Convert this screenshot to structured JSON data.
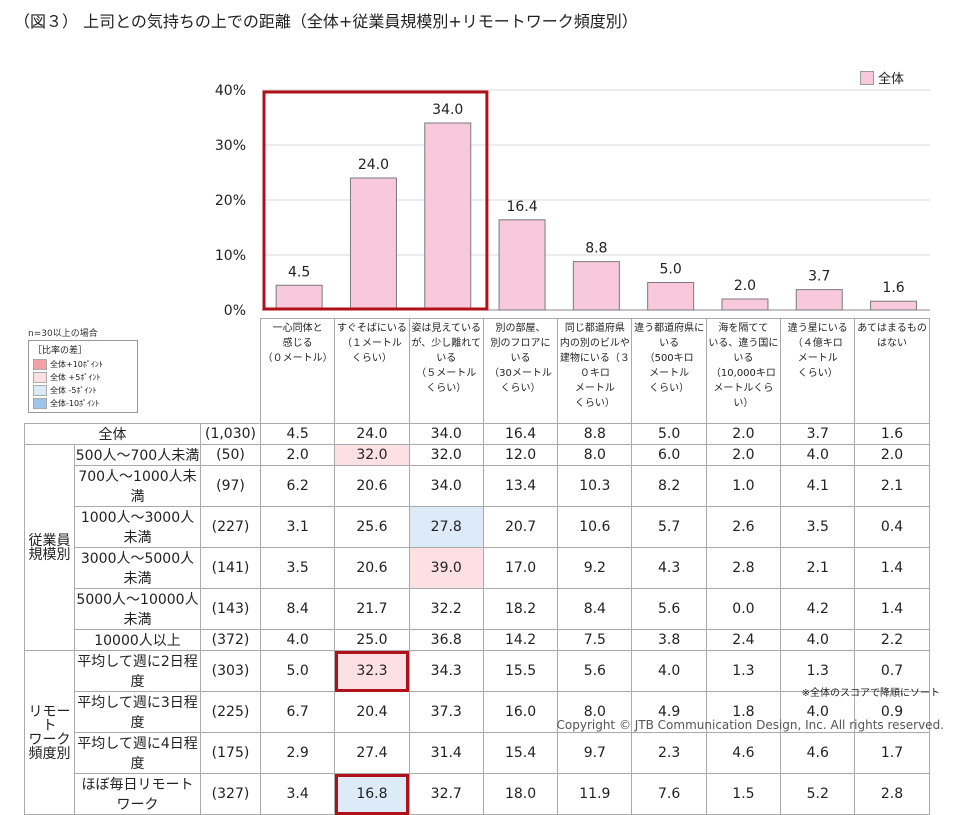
{
  "title": "（図３） 上司との気持ちの上での距離（全体+従業員規模別+リモートワーク頻度別）",
  "legend": {
    "label": "全体",
    "color": "#f8c8dc"
  },
  "chart_data": {
    "type": "bar",
    "categories": [
      "一心同体と感じる（０メートル）",
      "すぐそばにいる（１メートルくらい）",
      "姿は見えているが、少し離れている（５メートルくらい）",
      "別の部屋、別のフロアにいる（30メートルくらい）",
      "同じ都道府県内の別のビルや建物にいる（３０キロメートルくらい）",
      "違う都道府県にいる（500キロメートルくらい）",
      "海を隔てている、違う国にいる（10,000キロメートルくらい）",
      "違う星にいる（４億キロメートルくらい）",
      "あてはまるものはない"
    ],
    "series": [
      {
        "name": "全体",
        "values": [
          4.5,
          24.0,
          34.0,
          16.4,
          8.8,
          5.0,
          2.0,
          3.7,
          1.6
        ]
      }
    ],
    "value_labels": [
      "4.5",
      "24.0",
      "34.0",
      "16.4",
      "8.8",
      "5.0",
      "2.0",
      "3.7",
      "1.6"
    ],
    "ylim": [
      0,
      40
    ],
    "yticks": [
      "0%",
      "10%",
      "20%",
      "30%",
      "40%"
    ],
    "grid": true,
    "legend_position": "top-right",
    "highlighted_categories": [
      0,
      1,
      2
    ],
    "bar_color": "#f8c8dc"
  },
  "note_n": "n=30以上の場合",
  "diff_legend": {
    "title": "［比率の差］",
    "items": [
      {
        "label": "全体+10ﾎﾟｲﾝﾄ",
        "color": "#f4a0a8"
      },
      {
        "label": "全体 +5ﾎﾟｲﾝﾄ",
        "color": "#fde0e4"
      },
      {
        "label": "全体 -5ﾎﾟｲﾝﾄ",
        "color": "#ddebf8"
      },
      {
        "label": "全体-10ﾎﾟｲﾝﾄ",
        "color": "#9ec4ea"
      }
    ]
  },
  "n_label": "n=",
  "table": {
    "headers": [
      [
        "一心同体と",
        "感じる",
        "（０メートル）"
      ],
      [
        "すぐそばにいる",
        "（１メートル",
        "くらい）"
      ],
      [
        "姿は見えている",
        "が、少し離れて",
        "いる",
        "（５メートル",
        "くらい）"
      ],
      [
        "別の部屋、",
        "別のフロアに",
        "いる",
        "（30メートル",
        "くらい）"
      ],
      [
        "同じ都道府県",
        "内の別のビルや",
        "建物にいる（３",
        "０キロ",
        "メートル",
        "くらい）"
      ],
      [
        "違う都道府県に",
        "いる",
        "（500キロ",
        "メートル",
        "くらい）"
      ],
      [
        "海を隔てて",
        "いる、違う国に",
        "いる",
        "（10,000キロ",
        "メートルくらい）"
      ],
      [
        "違う星にいる",
        "（４億キロ",
        "メートル",
        "くらい）"
      ],
      [
        "あてはまるもの",
        "はない"
      ]
    ],
    "total_row": {
      "label": "全体",
      "n": "(1,030)",
      "values": [
        "4.5",
        "24.0",
        "34.0",
        "16.4",
        "8.8",
        "5.0",
        "2.0",
        "3.7",
        "1.6"
      ]
    },
    "groups": [
      {
        "label": [
          "従業員",
          "規模別"
        ],
        "rows": [
          {
            "label": "500人～700人未満",
            "n": "(50)",
            "values": [
              "2.0",
              "32.0",
              "32.0",
              "12.0",
              "8.0",
              "6.0",
              "2.0",
              "4.0",
              "2.0"
            ],
            "styles": [
              "",
              "pink",
              "",
              "",
              "",
              "",
              "",
              "",
              ""
            ]
          },
          {
            "label": "700人～1000人未満",
            "n": "(97)",
            "values": [
              "6.2",
              "20.6",
              "34.0",
              "13.4",
              "10.3",
              "8.2",
              "1.0",
              "4.1",
              "2.1"
            ],
            "styles": [
              "",
              "",
              "",
              "",
              "",
              "",
              "",
              "",
              ""
            ]
          },
          {
            "label": "1000人～3000人未満",
            "n": "(227)",
            "values": [
              "3.1",
              "25.6",
              "27.8",
              "20.7",
              "10.6",
              "5.7",
              "2.6",
              "3.5",
              "0.4"
            ],
            "styles": [
              "",
              "",
              "blue",
              "",
              "",
              "",
              "",
              "",
              ""
            ]
          },
          {
            "label": "3000人～5000人未満",
            "n": "(141)",
            "values": [
              "3.5",
              "20.6",
              "39.0",
              "17.0",
              "9.2",
              "4.3",
              "2.8",
              "2.1",
              "1.4"
            ],
            "styles": [
              "",
              "",
              "pink",
              "",
              "",
              "",
              "",
              "",
              ""
            ]
          },
          {
            "label": "5000人～10000人未満",
            "n": "(143)",
            "values": [
              "8.4",
              "21.7",
              "32.2",
              "18.2",
              "8.4",
              "5.6",
              "0.0",
              "4.2",
              "1.4"
            ],
            "styles": [
              "",
              "",
              "",
              "",
              "",
              "",
              "",
              "",
              ""
            ]
          },
          {
            "label": "10000人以上",
            "n": "(372)",
            "values": [
              "4.0",
              "25.0",
              "36.8",
              "14.2",
              "7.5",
              "3.8",
              "2.4",
              "4.0",
              "2.2"
            ],
            "styles": [
              "",
              "",
              "",
              "",
              "",
              "",
              "",
              "",
              ""
            ]
          }
        ]
      },
      {
        "label": [
          "リモート",
          "ワーク",
          "頻度別"
        ],
        "rows": [
          {
            "label": "平均して週に2日程度",
            "n": "(303)",
            "values": [
              "5.0",
              "32.3",
              "34.3",
              "15.5",
              "5.6",
              "4.0",
              "1.3",
              "1.3",
              "0.7"
            ],
            "styles": [
              "",
              "pink box",
              "",
              "",
              "",
              "",
              "",
              "",
              ""
            ]
          },
          {
            "label": "平均して週に3日程度",
            "n": "(225)",
            "values": [
              "6.7",
              "20.4",
              "37.3",
              "16.0",
              "8.0",
              "4.9",
              "1.8",
              "4.0",
              "0.9"
            ],
            "styles": [
              "",
              "",
              "",
              "",
              "",
              "",
              "",
              "",
              ""
            ]
          },
          {
            "label": "平均して週に4日程度",
            "n": "(175)",
            "values": [
              "2.9",
              "27.4",
              "31.4",
              "15.4",
              "9.7",
              "2.3",
              "4.6",
              "4.6",
              "1.7"
            ],
            "styles": [
              "",
              "",
              "",
              "",
              "",
              "",
              "",
              "",
              ""
            ]
          },
          {
            "label": "ほぼ毎日リモートワーク",
            "n": "(327)",
            "values": [
              "3.4",
              "16.8",
              "32.7",
              "18.0",
              "11.9",
              "7.6",
              "1.5",
              "5.2",
              "2.8"
            ],
            "styles": [
              "",
              "blue box",
              "",
              "",
              "",
              "",
              "",
              "",
              ""
            ]
          }
        ]
      }
    ]
  },
  "footnote": "※全体のスコアで降順にソート",
  "copyright": "Copyright © JTB Communication Design, Inc. All rights reserved."
}
